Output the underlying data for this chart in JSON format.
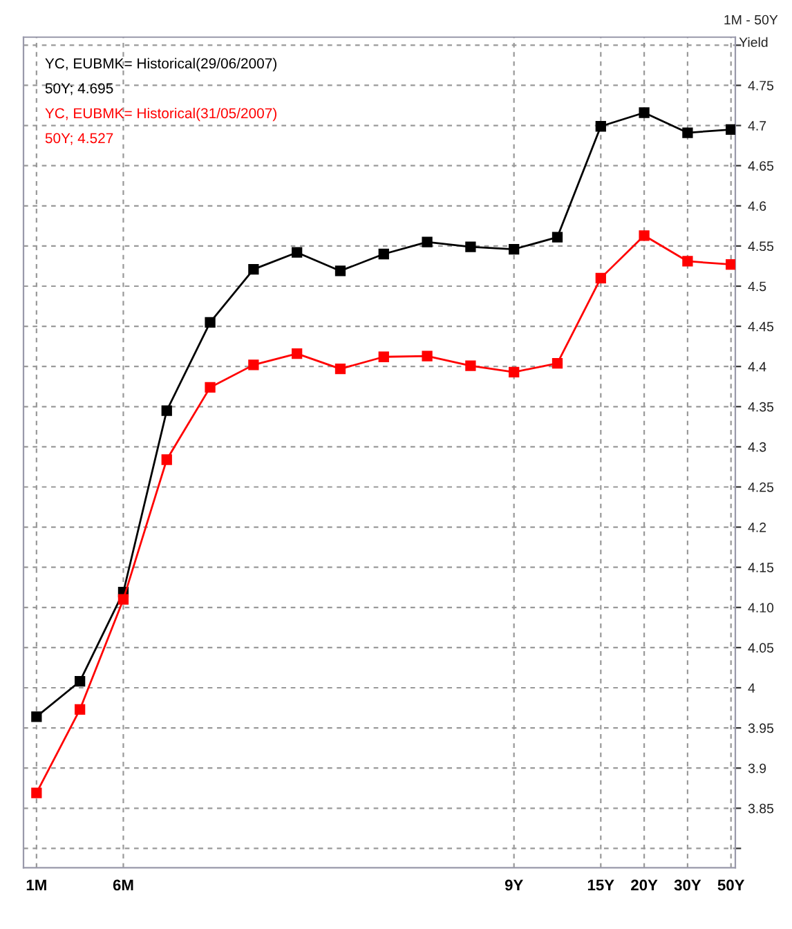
{
  "chart_data": {
    "type": "line",
    "ylabel": "Yield",
    "subtitle": "1M - 50Y",
    "categories": [
      "1M",
      null,
      "6M",
      null,
      null,
      null,
      null,
      null,
      null,
      null,
      null,
      "9Y",
      null,
      "15Y",
      "20Y",
      "30Y",
      "50Y"
    ],
    "series": [
      {
        "name": "YC, EUBMK= Historical(29/06/2007)",
        "color": "#000000",
        "values": [
          3.964,
          4.008,
          4.119,
          4.345,
          4.455,
          4.521,
          4.542,
          4.519,
          4.54,
          4.555,
          4.549,
          4.546,
          4.561,
          4.699,
          4.716,
          4.691,
          4.695
        ]
      },
      {
        "name": "YC, EUBMK= Historical(31/05/2007)",
        "color": "#ff0000",
        "values": [
          3.869,
          3.973,
          4.11,
          4.284,
          4.374,
          4.402,
          4.416,
          4.397,
          4.412,
          4.413,
          4.401,
          4.393,
          4.404,
          4.51,
          4.563,
          4.531,
          4.527
        ]
      }
    ],
    "annotations": [
      "50Y; 4.695",
      "50Y; 4.527"
    ],
    "ylim": [
      3.776,
      4.81
    ],
    "yticks": [
      {
        "value": 3.8,
        "label": null
      },
      3.85,
      3.9,
      3.95,
      {
        "value": 4,
        "label": "4"
      },
      4.05,
      {
        "value": 4.1,
        "label": "4.10"
      },
      4.15,
      {
        "value": 4.2,
        "label": "4.2"
      },
      4.25,
      {
        "value": 4.3,
        "label": "4.3"
      },
      4.35,
      {
        "value": 4.4,
        "label": "4.4"
      },
      4.45,
      {
        "value": 4.5,
        "label": "4.5"
      },
      4.55,
      {
        "value": 4.6,
        "label": "4.6"
      },
      4.65,
      {
        "value": 4.7,
        "label": "4.7"
      },
      4.75,
      {
        "value": 4.8,
        "label": null
      }
    ],
    "grid": true,
    "legend": "top left",
    "marker": "square",
    "line_style": "solid"
  }
}
